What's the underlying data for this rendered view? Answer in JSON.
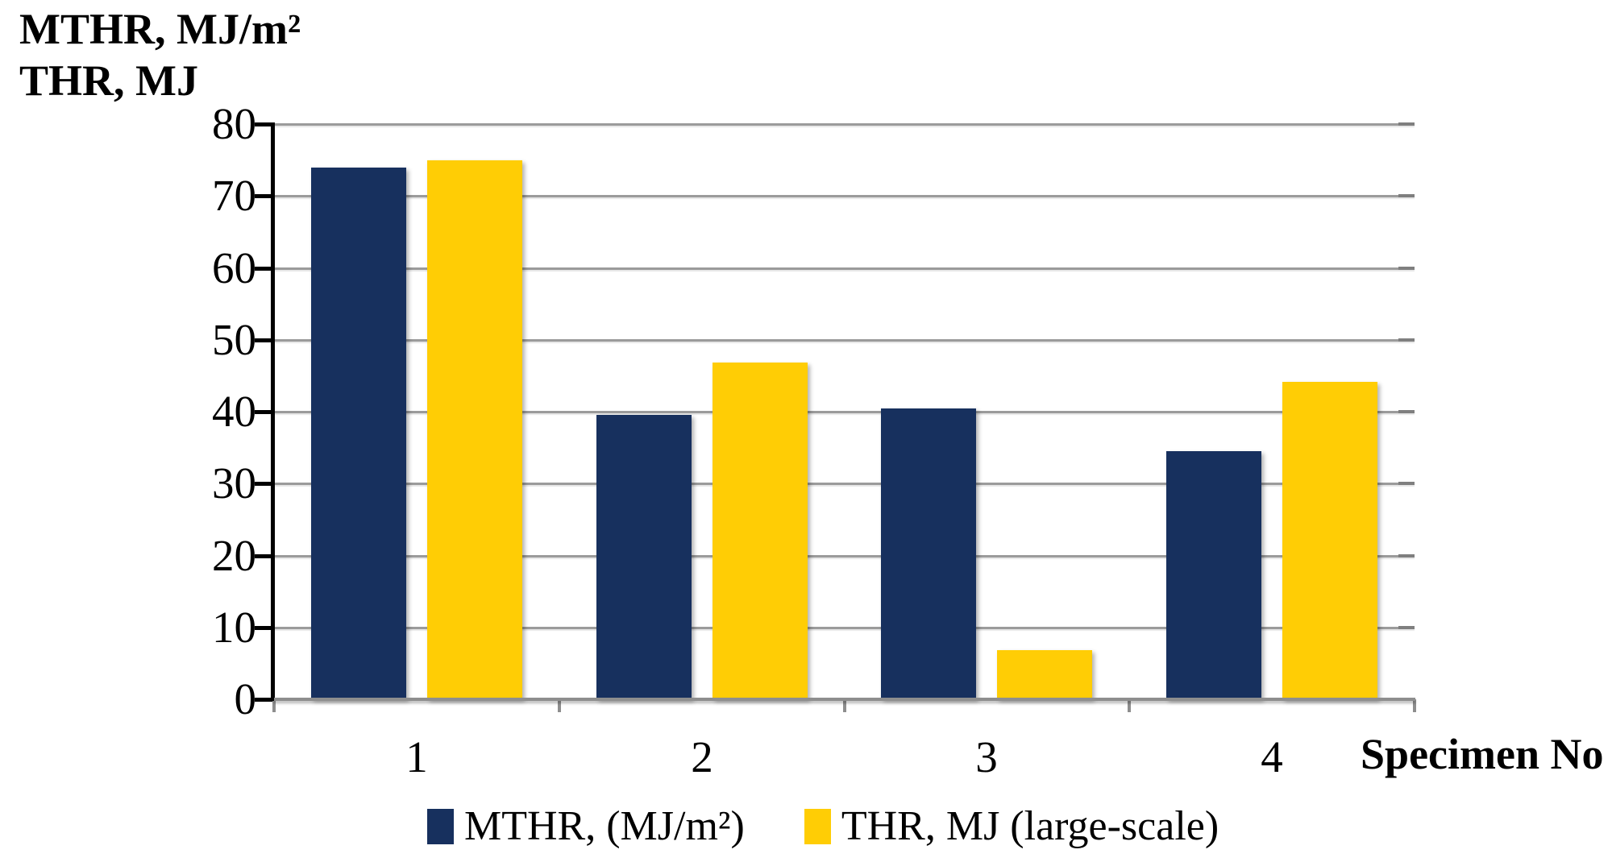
{
  "title": {
    "line1": "MTHR, MJ/m²",
    "line2": "THR, MJ"
  },
  "x_axis_label": "Specimen No",
  "chart_data": {
    "type": "bar",
    "title": "MTHR, MJ/m²; THR, MJ",
    "categories": [
      "1",
      "2",
      "3",
      "4"
    ],
    "series": [
      {
        "name": "MTHR, (MJ/m²)",
        "color": "#17305E",
        "values": [
          74,
          39.5,
          40.5,
          34.5
        ]
      },
      {
        "name": "THR, MJ (large-scale)",
        "color": "#FFCD05",
        "values": [
          75,
          46.8,
          6.8,
          44.2
        ]
      }
    ],
    "xlabel": "Specimen No",
    "ylabel": "MTHR, MJ/m²; THR, MJ",
    "ylim": [
      0,
      80
    ],
    "yticks": [
      0,
      10,
      20,
      30,
      40,
      50,
      60,
      70,
      80
    ],
    "grid": true,
    "legend_position": "bottom"
  },
  "colors": {
    "y_axis": "#000000",
    "x_axis": "#8E8E8E",
    "gridline": "#9B9B9B",
    "background": "#FFFFFF",
    "text": "#000000"
  }
}
